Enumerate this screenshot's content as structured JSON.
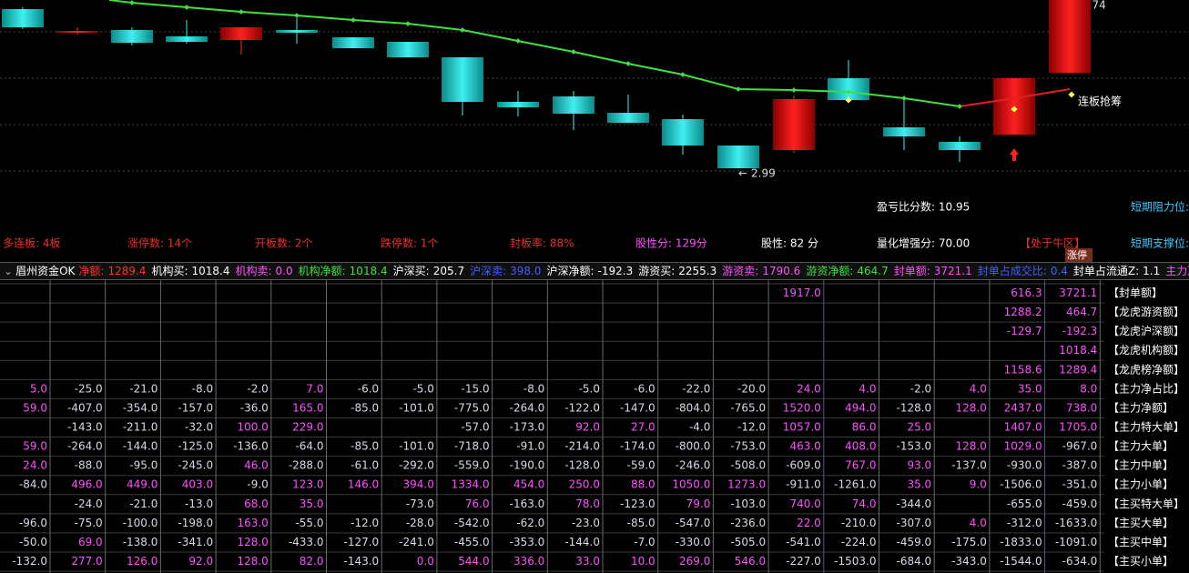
{
  "price_chart": {
    "high_label": "3.74",
    "low_label": "2.99",
    "signal_label": "连板抢筹",
    "limit_up_tag": "涨停"
  },
  "stats": {
    "line1": [
      "盈亏比分数: 10.95",
      "短期阻力位:"
    ],
    "line2": [
      "多连板: 4板",
      "涨停数: 14个",
      "开板数: 2个",
      "跌停数: 1个",
      "封板率: 88%",
      "股性分: 129分",
      "股性: 82 分",
      "量化增强分: 70.00",
      "【处于牛区】",
      "短期支撑位:"
    ]
  },
  "status_bar": {
    "title": "眉州资金OK",
    "items": [
      {
        "label": "净额:",
        "value": "1289.4"
      },
      {
        "label": "机构买:",
        "value": "1018.4"
      },
      {
        "label": "机构卖:",
        "value": "0.0"
      },
      {
        "label": "机构净额:",
        "value": "1018.4"
      },
      {
        "label": "沪深买:",
        "value": "205.7"
      },
      {
        "label": "沪深卖:",
        "value": "398.0"
      },
      {
        "label": "沪深净额:",
        "value": "-192.3"
      },
      {
        "label": "游资买:",
        "value": "2255.3"
      },
      {
        "label": "游资卖:",
        "value": "1790.6"
      },
      {
        "label": "游资净额:",
        "value": "464.7"
      },
      {
        "label": "封单额:",
        "value": "3721.1"
      },
      {
        "label": "封单占成交比:",
        "value": "0.4"
      },
      {
        "label": "封单占流通Z:",
        "value": "1.1"
      },
      {
        "label": "主力净额:",
        "value": "738.0"
      },
      {
        "label": "净占",
        "value": null
      }
    ]
  },
  "table": {
    "row_labels": [
      "【封单额】",
      "【龙虎游资额】",
      "【龙虎沪深额】",
      "【龙虎机构额】",
      "【龙虎榜净额】",
      "【主力净占比】",
      "【主力净额】",
      "【主力特大单】",
      "【主力大单】",
      "【主力中单】",
      "【主力小单】",
      "【主买特大单】",
      "【主买大单】",
      "【主买中单】",
      "【主买小单】"
    ],
    "rows": [
      [
        null,
        null,
        null,
        null,
        null,
        null,
        null,
        null,
        null,
        null,
        null,
        null,
        null,
        null,
        "1917.0",
        null,
        null,
        null,
        "616.3",
        "3721.1"
      ],
      [
        null,
        null,
        null,
        null,
        null,
        null,
        null,
        null,
        null,
        null,
        null,
        null,
        null,
        null,
        null,
        null,
        null,
        null,
        "1288.2",
        "464.7"
      ],
      [
        null,
        null,
        null,
        null,
        null,
        null,
        null,
        null,
        null,
        null,
        null,
        null,
        null,
        null,
        null,
        null,
        null,
        null,
        "-129.7",
        "-192.3"
      ],
      [
        null,
        null,
        null,
        null,
        null,
        null,
        null,
        null,
        null,
        null,
        null,
        null,
        null,
        null,
        null,
        null,
        null,
        null,
        null,
        "1018.4"
      ],
      [
        null,
        null,
        null,
        null,
        null,
        null,
        null,
        null,
        null,
        null,
        null,
        null,
        null,
        null,
        null,
        null,
        null,
        null,
        "1158.6",
        "1289.4"
      ],
      [
        "5.0",
        "-25.0",
        "-21.0",
        "-8.0",
        "-2.0",
        "7.0",
        "-6.0",
        "-5.0",
        "-15.0",
        "-8.0",
        "-5.0",
        "-6.0",
        "-22.0",
        "-20.0",
        "24.0",
        "4.0",
        "-2.0",
        "4.0",
        "35.0",
        "8.0"
      ],
      [
        "59.0",
        "-407.0",
        "-354.0",
        "-157.0",
        "-36.0",
        "165.0",
        "-85.0",
        "-101.0",
        "-775.0",
        "-264.0",
        "-122.0",
        "-147.0",
        "-804.0",
        "-765.0",
        "1520.0",
        "494.0",
        "-128.0",
        "128.0",
        "2437.0",
        "738.0"
      ],
      [
        null,
        "-143.0",
        "-211.0",
        "-32.0",
        "100.0",
        "229.0",
        null,
        null,
        "-57.0",
        "-173.0",
        "92.0",
        "27.0",
        "-4.0",
        "-12.0",
        "1057.0",
        "86.0",
        "25.0",
        null,
        "1407.0",
        "1705.0"
      ],
      [
        "59.0",
        "-264.0",
        "-144.0",
        "-125.0",
        "-136.0",
        "-64.0",
        "-85.0",
        "-101.0",
        "-718.0",
        "-91.0",
        "-214.0",
        "-174.0",
        "-800.0",
        "-753.0",
        "463.0",
        "408.0",
        "-153.0",
        "128.0",
        "1029.0",
        "-967.0"
      ],
      [
        "24.0",
        "-88.0",
        "-95.0",
        "-245.0",
        "46.0",
        "-288.0",
        "-61.0",
        "-292.0",
        "-559.0",
        "-190.0",
        "-128.0",
        "-59.0",
        "-246.0",
        "-508.0",
        "-609.0",
        "767.0",
        "93.0",
        "-137.0",
        "-930.0",
        "-387.0"
      ],
      [
        "-84.0",
        "496.0",
        "449.0",
        "403.0",
        "-9.0",
        "123.0",
        "146.0",
        "394.0",
        "1334.0",
        "454.0",
        "250.0",
        "88.0",
        "1050.0",
        "1273.0",
        "-911.0",
        "-1261.0",
        "35.0",
        "9.0",
        "-1506.0",
        "-351.0"
      ],
      [
        null,
        "-24.0",
        "-21.0",
        "-13.0",
        "68.0",
        "35.0",
        null,
        "-73.0",
        "76.0",
        "-163.0",
        "78.0",
        "-123.0",
        "79.0",
        "-103.0",
        "740.0",
        "74.0",
        "-344.0",
        null,
        "-655.0",
        "-459.0"
      ],
      [
        "-96.0",
        "-75.0",
        "-100.0",
        "-198.0",
        "163.0",
        "-55.0",
        "-12.0",
        "-28.0",
        "-542.0",
        "-62.0",
        "-23.0",
        "-85.0",
        "-547.0",
        "-236.0",
        "22.0",
        "-210.0",
        "-307.0",
        "4.0",
        "-312.0",
        "-1633.0"
      ],
      [
        "-50.0",
        "69.0",
        "-138.0",
        "-341.0",
        "128.0",
        "-433.0",
        "-127.0",
        "-241.0",
        "-455.0",
        "-353.0",
        "-144.0",
        "-7.0",
        "-330.0",
        "-505.0",
        "-541.0",
        "-224.0",
        "-459.0",
        "-175.0",
        "-1833.0",
        "-1091.0"
      ],
      [
        "-132.0",
        "277.0",
        "126.0",
        "92.0",
        "128.0",
        "82.0",
        "-143.0",
        "0.0",
        "544.0",
        "336.0",
        "33.0",
        "10.0",
        "269.0",
        "546.0",
        "-227.0",
        "-1503.0",
        "-684.0",
        "-343.0",
        "-1544.0",
        "-634.0"
      ]
    ]
  }
}
